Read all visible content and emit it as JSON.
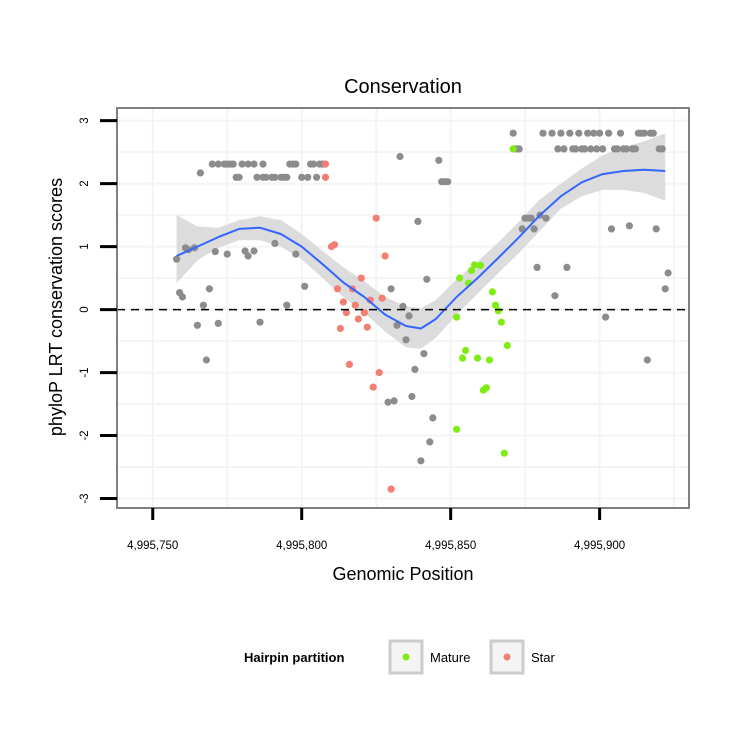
{
  "chart_data": {
    "type": "scatter",
    "title": "Conservation",
    "xlabel": "Genomic Position",
    "ylabel": "phyloP LRT conservation scores",
    "xlim": [
      4995738,
      4995930
    ],
    "ylim": [
      -3.15,
      3.2
    ],
    "xticks": [
      4995750,
      4995800,
      4995850,
      4995900
    ],
    "xtick_labels": [
      "4,995,750",
      "4,995,800",
      "4,995,850",
      "4,995,900"
    ],
    "yticks": [
      -3,
      -2,
      -1,
      0,
      1,
      2,
      3
    ],
    "ytick_labels": [
      "-3",
      "-2",
      "-1",
      "0",
      "1",
      "2",
      "3"
    ],
    "reference_line": {
      "y": 0,
      "style": "dashed"
    },
    "colors": {
      "other": "#8c8c8c",
      "Mature": "#7fec13",
      "Star": "#f27f72",
      "smooth": "#3366ff",
      "ribbon": "#d6d6d6",
      "grid": "#f4f4f4",
      "frame": "#808080"
    },
    "legend": {
      "title": "Hairpin partition",
      "entries": [
        {
          "label": "Mature",
          "color": "#7fec13"
        },
        {
          "label": "Star",
          "color": "#f27f72"
        }
      ],
      "position": "bottom"
    },
    "series": [
      {
        "name": "Other",
        "color": "#8c8c8c",
        "points": [
          [
            4995758,
            0.8
          ],
          [
            4995759,
            0.27
          ],
          [
            4995760,
            0.2
          ],
          [
            4995761,
            0.98
          ],
          [
            4995762,
            0.95
          ],
          [
            4995764,
            0.98
          ],
          [
            4995765,
            -0.25
          ],
          [
            4995766,
            2.17
          ],
          [
            4995767,
            0.07
          ],
          [
            4995768,
            -0.8
          ],
          [
            4995769,
            0.33
          ],
          [
            4995770,
            2.31
          ],
          [
            4995771,
            0.92
          ],
          [
            4995772,
            -0.22
          ],
          [
            4995772,
            2.31
          ],
          [
            4995774,
            2.31
          ],
          [
            4995775,
            0.88
          ],
          [
            4995775,
            2.31
          ],
          [
            4995776,
            2.31
          ],
          [
            4995777,
            2.31
          ],
          [
            4995778,
            2.1
          ],
          [
            4995779,
            2.1
          ],
          [
            4995780,
            2.31
          ],
          [
            4995781,
            0.93
          ],
          [
            4995782,
            0.85
          ],
          [
            4995782,
            2.31
          ],
          [
            4995784,
            0.93
          ],
          [
            4995784,
            2.31
          ],
          [
            4995785,
            2.1
          ],
          [
            4995786,
            -0.2
          ],
          [
            4995787,
            2.31
          ],
          [
            4995787,
            2.1
          ],
          [
            4995788,
            2.1
          ],
          [
            4995790,
            2.1
          ],
          [
            4995791,
            2.1
          ],
          [
            4995791,
            1.05
          ],
          [
            4995793,
            2.1
          ],
          [
            4995794,
            2.1
          ],
          [
            4995795,
            0.07
          ],
          [
            4995795,
            2.1
          ],
          [
            4995796,
            2.31
          ],
          [
            4995797,
            2.31
          ],
          [
            4995798,
            0.88
          ],
          [
            4995798,
            2.31
          ],
          [
            4995800,
            2.1
          ],
          [
            4995801,
            0.37
          ],
          [
            4995802,
            2.1
          ],
          [
            4995803,
            2.31
          ],
          [
            4995804,
            2.31
          ],
          [
            4995805,
            2.1
          ],
          [
            4995806,
            2.31
          ],
          [
            4995807,
            2.31
          ],
          [
            4995829,
            -1.47
          ],
          [
            4995830,
            0.33
          ],
          [
            4995831,
            -1.45
          ],
          [
            4995832,
            -0.25
          ],
          [
            4995833,
            2.43
          ],
          [
            4995834,
            0.05
          ],
          [
            4995835,
            -0.48
          ],
          [
            4995836,
            -0.1
          ],
          [
            4995837,
            -1.38
          ],
          [
            4995838,
            -0.95
          ],
          [
            4995839,
            1.4
          ],
          [
            4995840,
            -2.4
          ],
          [
            4995841,
            -0.7
          ],
          [
            4995842,
            0.48
          ],
          [
            4995843,
            -2.1
          ],
          [
            4995844,
            -1.72
          ],
          [
            4995846,
            2.37
          ],
          [
            4995847,
            2.03
          ],
          [
            4995848,
            2.03
          ],
          [
            4995849,
            2.03
          ],
          [
            4995871,
            2.8
          ],
          [
            4995872,
            2.55
          ],
          [
            4995873,
            2.55
          ],
          [
            4995874,
            1.28
          ],
          [
            4995875,
            1.45
          ],
          [
            4995876,
            1.45
          ],
          [
            4995877,
            1.45
          ],
          [
            4995878,
            1.28
          ],
          [
            4995879,
            0.67
          ],
          [
            4995880,
            1.5
          ],
          [
            4995881,
            2.8
          ],
          [
            4995882,
            1.45
          ],
          [
            4995884,
            2.8
          ],
          [
            4995885,
            0.22
          ],
          [
            4995886,
            2.55
          ],
          [
            4995887,
            2.8
          ],
          [
            4995888,
            2.55
          ],
          [
            4995889,
            0.67
          ],
          [
            4995890,
            2.8
          ],
          [
            4995891,
            2.55
          ],
          [
            4995892,
            2.55
          ],
          [
            4995893,
            2.8
          ],
          [
            4995894,
            2.55
          ],
          [
            4995895,
            2.55
          ],
          [
            4995896,
            2.8
          ],
          [
            4995897,
            2.55
          ],
          [
            4995898,
            2.8
          ],
          [
            4995899,
            2.55
          ],
          [
            4995900,
            2.8
          ],
          [
            4995901,
            2.55
          ],
          [
            4995902,
            -0.12
          ],
          [
            4995903,
            2.8
          ],
          [
            4995904,
            1.28
          ],
          [
            4995905,
            2.55
          ],
          [
            4995906,
            2.55
          ],
          [
            4995907,
            2.8
          ],
          [
            4995908,
            2.55
          ],
          [
            4995909,
            2.55
          ],
          [
            4995910,
            1.33
          ],
          [
            4995911,
            2.55
          ],
          [
            4995912,
            2.55
          ],
          [
            4995913,
            2.8
          ],
          [
            4995914,
            2.8
          ],
          [
            4995915,
            2.8
          ],
          [
            4995916,
            -0.8
          ],
          [
            4995917,
            2.8
          ],
          [
            4995918,
            2.8
          ],
          [
            4995919,
            1.28
          ],
          [
            4995920,
            2.55
          ],
          [
            4995921,
            2.55
          ],
          [
            4995922,
            0.33
          ],
          [
            4995923,
            0.58
          ]
        ]
      },
      {
        "name": "Mature",
        "color": "#7fec13",
        "points": [
          [
            4995852,
            -0.12
          ],
          [
            4995852,
            -1.9
          ],
          [
            4995853,
            0.5
          ],
          [
            4995854,
            -0.77
          ],
          [
            4995855,
            -0.65
          ],
          [
            4995856,
            0.42
          ],
          [
            4995857,
            0.62
          ],
          [
            4995858,
            0.71
          ],
          [
            4995859,
            -0.77
          ],
          [
            4995860,
            0.7
          ],
          [
            4995861,
            -1.28
          ],
          [
            4995862,
            -1.24
          ],
          [
            4995863,
            -0.8
          ],
          [
            4995864,
            0.28
          ],
          [
            4995865,
            0.07
          ],
          [
            4995866,
            -0.02
          ],
          [
            4995867,
            -0.2
          ],
          [
            4995868,
            -2.28
          ],
          [
            4995869,
            -0.57
          ],
          [
            4995871,
            2.55
          ]
        ]
      },
      {
        "name": "Star",
        "color": "#f27f72",
        "points": [
          [
            4995808,
            2.31
          ],
          [
            4995808,
            2.1
          ],
          [
            4995810,
            1.0
          ],
          [
            4995811,
            1.03
          ],
          [
            4995812,
            0.33
          ],
          [
            4995813,
            -0.3
          ],
          [
            4995814,
            0.12
          ],
          [
            4995815,
            -0.05
          ],
          [
            4995816,
            -0.87
          ],
          [
            4995817,
            0.33
          ],
          [
            4995818,
            0.07
          ],
          [
            4995819,
            -0.15
          ],
          [
            4995820,
            0.5
          ],
          [
            4995821,
            -0.05
          ],
          [
            4995822,
            -0.28
          ],
          [
            4995823,
            0.15
          ],
          [
            4995824,
            -1.23
          ],
          [
            4995825,
            1.45
          ],
          [
            4995826,
            -1.0
          ],
          [
            4995827,
            0.18
          ],
          [
            4995828,
            0.85
          ],
          [
            4995830,
            -2.85
          ]
        ]
      }
    ],
    "smooth": {
      "x": [
        4995758,
        4995765,
        4995772,
        4995779,
        4995786,
        4995793,
        4995800,
        4995807,
        4995814,
        4995821,
        4995828,
        4995835,
        4995840,
        4995845,
        4995852,
        4995859,
        4995866,
        4995873,
        4995880,
        4995887,
        4995894,
        4995901,
        4995908,
        4995915,
        4995922
      ],
      "y": [
        0.85,
        1.0,
        1.15,
        1.28,
        1.3,
        1.2,
        1.0,
        0.72,
        0.43,
        0.2,
        -0.08,
        -0.26,
        -0.3,
        -0.15,
        0.2,
        0.5,
        0.82,
        1.15,
        1.5,
        1.8,
        2.02,
        2.15,
        2.2,
        2.22,
        2.2
      ],
      "lower": [
        0.42,
        0.78,
        0.98,
        1.1,
        1.1,
        1.0,
        0.8,
        0.5,
        0.2,
        -0.05,
        -0.35,
        -0.6,
        -0.62,
        -0.45,
        -0.08,
        0.25,
        0.58,
        0.9,
        1.25,
        1.6,
        1.8,
        1.9,
        1.9,
        1.85,
        1.73
      ],
      "upper": [
        1.5,
        1.32,
        1.3,
        1.42,
        1.48,
        1.42,
        1.2,
        0.93,
        0.67,
        0.45,
        0.2,
        0.05,
        0.02,
        0.15,
        0.48,
        0.76,
        1.07,
        1.4,
        1.75,
        2.0,
        2.24,
        2.45,
        2.58,
        2.67,
        2.8
      ]
    }
  }
}
